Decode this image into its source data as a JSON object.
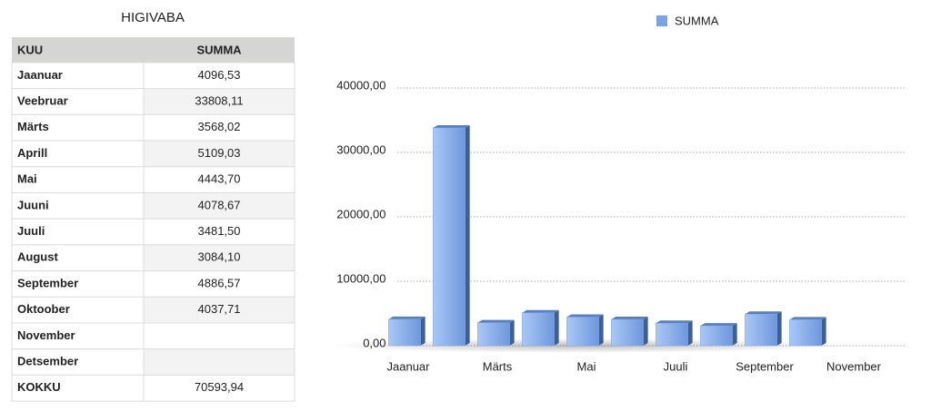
{
  "title": "HIGIVABA",
  "table": {
    "header": [
      "KUU",
      "SUMMA"
    ],
    "rows": [
      [
        "Jaanuar",
        "4096,53"
      ],
      [
        "Veebruar",
        "33808,11"
      ],
      [
        "Märts",
        "3568,02"
      ],
      [
        "Aprill",
        "5109,03"
      ],
      [
        "Mai",
        "4443,70"
      ],
      [
        "Juuni",
        "4078,67"
      ],
      [
        "Juuli",
        "3481,50"
      ],
      [
        "August",
        "3084,10"
      ],
      [
        "September",
        "4886,57"
      ],
      [
        "Oktoober",
        "4037,71"
      ],
      [
        "November"
      ],
      [
        "Detsember"
      ],
      [
        "KOKKU",
        "70593,94"
      ]
    ]
  },
  "chart_data": {
    "type": "bar",
    "categories": [
      "Jaanuar",
      null,
      "Märts",
      null,
      "Mai",
      null,
      "Juuli",
      null,
      "September",
      null,
      "November",
      null
    ],
    "series": [
      {
        "name": "SUMMA",
        "color": "#7aa3e5",
        "values": [
          4096.53,
          33808.11,
          3568.02,
          5109.03,
          4443.7,
          4078.67,
          3481.5,
          3084.1,
          4886.57,
          4037.71,
          null,
          null
        ]
      }
    ],
    "ylim": [
      0,
      40000
    ],
    "yticks": [
      {
        "value": 0,
        "label": "0,00"
      },
      {
        "value": 10000,
        "label": "10000,00"
      },
      {
        "value": 20000,
        "label": "20000,00"
      },
      {
        "value": 30000,
        "label": "30000,00"
      },
      {
        "value": 40000,
        "label": "40000,00"
      }
    ],
    "grid": true,
    "legend": "top"
  }
}
